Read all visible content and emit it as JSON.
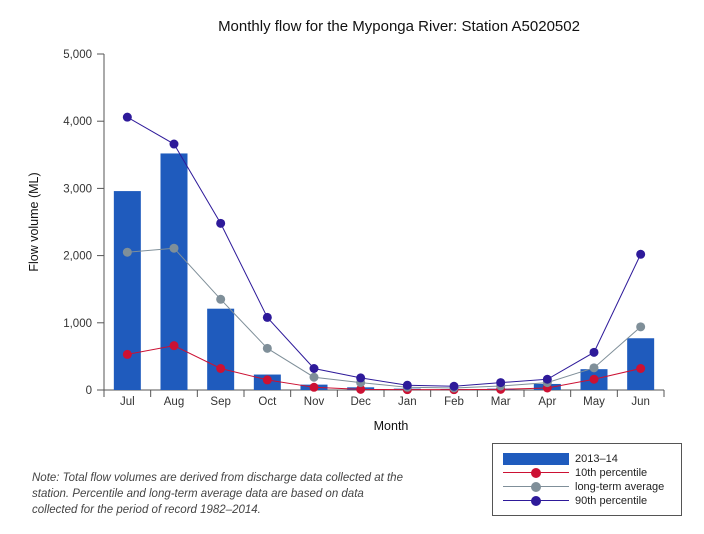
{
  "chart_data": {
    "type": "bar",
    "title": "Monthly flow for the Myponga River: Station A5020502",
    "xlabel": "Month",
    "ylabel": "Flow volume (ML)",
    "ylim": [
      0,
      5000
    ],
    "yticks": [
      0,
      1000,
      2000,
      3000,
      4000,
      5000
    ],
    "ytick_labels": [
      "0",
      "1,000",
      "2,000",
      "3,000",
      "4,000",
      "5,000"
    ],
    "categories": [
      "Jul",
      "Aug",
      "Sep",
      "Oct",
      "Nov",
      "Dec",
      "Jan",
      "Feb",
      "Mar",
      "Apr",
      "May",
      "Jun"
    ],
    "legend_position": "bottom-right",
    "series": [
      {
        "name": "2013–14",
        "kind": "bar",
        "color": "#1f5bbd",
        "values": [
          2960,
          3520,
          1210,
          230,
          80,
          40,
          20,
          15,
          20,
          90,
          310,
          770
        ]
      },
      {
        "name": "10th percentile",
        "kind": "line",
        "color": "#cc1133",
        "values": [
          530,
          660,
          320,
          150,
          40,
          10,
          5,
          5,
          10,
          30,
          160,
          320
        ]
      },
      {
        "name": "long-term average",
        "kind": "line",
        "color": "#7f8f99",
        "values": [
          2050,
          2110,
          1350,
          620,
          190,
          110,
          40,
          30,
          60,
          110,
          330,
          940
        ]
      },
      {
        "name": "90th percentile",
        "kind": "line",
        "color": "#2e1a9a",
        "values": [
          4060,
          3660,
          2480,
          1080,
          320,
          180,
          70,
          55,
          110,
          160,
          560,
          2020
        ]
      }
    ]
  },
  "note": "Note: Total flow volumes are derived from discharge data collected at the station. Percentile and long-term average data are based on data collected for the period of record 1982–2014."
}
